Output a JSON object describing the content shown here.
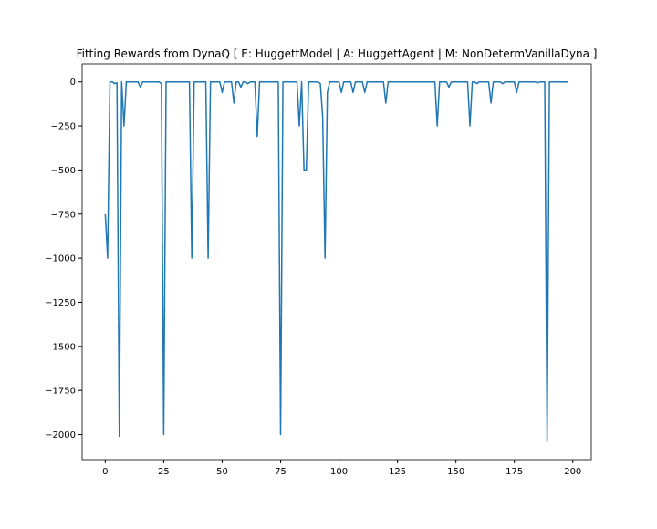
{
  "chart_data": {
    "type": "line",
    "title": "Fitting Rewards from DynaQ [ E: HuggettModel | A: HuggettAgent | M: NonDetermVanillaDyna ]",
    "x": [
      0,
      1,
      2,
      3,
      4,
      5,
      6,
      7,
      8,
      9,
      10,
      11,
      12,
      13,
      14,
      15,
      16,
      17,
      18,
      19,
      20,
      21,
      22,
      23,
      24,
      25,
      26,
      27,
      28,
      29,
      30,
      31,
      32,
      33,
      34,
      35,
      36,
      37,
      38,
      39,
      40,
      41,
      42,
      43,
      44,
      45,
      46,
      47,
      48,
      49,
      50,
      51,
      52,
      53,
      54,
      55,
      56,
      57,
      58,
      59,
      60,
      61,
      62,
      63,
      64,
      65,
      66,
      67,
      68,
      69,
      70,
      71,
      72,
      73,
      74,
      75,
      76,
      77,
      78,
      79,
      80,
      81,
      82,
      83,
      84,
      85,
      86,
      87,
      88,
      89,
      90,
      91,
      92,
      93,
      94,
      95,
      96,
      97,
      98,
      99,
      100,
      101,
      102,
      103,
      104,
      105,
      106,
      107,
      108,
      109,
      110,
      111,
      112,
      113,
      114,
      115,
      116,
      117,
      118,
      119,
      120,
      121,
      122,
      123,
      124,
      125,
      126,
      127,
      128,
      129,
      130,
      131,
      132,
      133,
      134,
      135,
      136,
      137,
      138,
      139,
      140,
      141,
      142,
      143,
      144,
      145,
      146,
      147,
      148,
      149,
      150,
      151,
      152,
      153,
      154,
      155,
      156,
      157,
      158,
      159,
      160,
      161,
      162,
      163,
      164,
      165,
      166,
      167,
      168,
      169,
      170,
      171,
      172,
      173,
      174,
      175,
      176,
      177,
      178,
      179,
      180,
      181,
      182,
      183,
      184,
      185,
      186,
      187,
      188,
      189,
      190,
      191,
      192,
      193,
      194,
      195,
      196,
      197,
      198
    ],
    "series": [
      {
        "color": "#1f77b4",
        "values": [
          -750,
          -1000,
          0,
          0,
          -10,
          -5,
          -2010,
          0,
          -250,
          0,
          0,
          0,
          0,
          0,
          0,
          -30,
          0,
          0,
          0,
          0,
          0,
          0,
          0,
          0,
          -10,
          -2000,
          0,
          0,
          0,
          0,
          0,
          0,
          0,
          0,
          0,
          0,
          0,
          -1000,
          0,
          0,
          0,
          0,
          0,
          0,
          -1000,
          0,
          0,
          0,
          0,
          0,
          -60,
          0,
          0,
          0,
          0,
          -120,
          0,
          0,
          -30,
          0,
          0,
          -10,
          0,
          0,
          0,
          -310,
          0,
          0,
          0,
          0,
          0,
          0,
          0,
          0,
          0,
          -2000,
          0,
          0,
          0,
          0,
          0,
          0,
          0,
          -250,
          0,
          -500,
          -500,
          0,
          0,
          0,
          0,
          0,
          -10,
          -200,
          -1000,
          -60,
          0,
          0,
          0,
          0,
          0,
          -60,
          0,
          0,
          0,
          0,
          -60,
          0,
          0,
          0,
          0,
          -60,
          0,
          0,
          0,
          0,
          0,
          0,
          0,
          0,
          -120,
          0,
          0,
          0,
          0,
          0,
          0,
          0,
          0,
          0,
          0,
          0,
          0,
          0,
          0,
          0,
          0,
          0,
          0,
          0,
          0,
          0,
          -250,
          0,
          0,
          0,
          0,
          -30,
          0,
          0,
          0,
          0,
          0,
          0,
          0,
          0,
          -250,
          0,
          0,
          -10,
          0,
          0,
          0,
          0,
          0,
          -120,
          0,
          0,
          0,
          0,
          -10,
          0,
          0,
          0,
          0,
          0,
          -60,
          0,
          0,
          0,
          0,
          0,
          0,
          0,
          0,
          -5,
          0,
          0,
          0,
          -2040,
          0,
          0,
          0,
          0,
          0,
          0,
          0,
          0,
          0
        ]
      }
    ],
    "xlim": [
      -9.9,
      207.9
    ],
    "ylim": [
      -2142,
      102
    ],
    "xticks": [
      0,
      25,
      50,
      75,
      100,
      125,
      150,
      175,
      200
    ],
    "yticks": [
      {
        "value": -2000,
        "label": "−2000"
      },
      {
        "value": -1750,
        "label": "−1750"
      },
      {
        "value": -1500,
        "label": "−1500"
      },
      {
        "value": -1250,
        "label": "−1250"
      },
      {
        "value": -1000,
        "label": "−1000"
      },
      {
        "value": -750,
        "label": "−750"
      },
      {
        "value": -500,
        "label": "−500"
      },
      {
        "value": -250,
        "label": "−250"
      },
      0
    ]
  }
}
